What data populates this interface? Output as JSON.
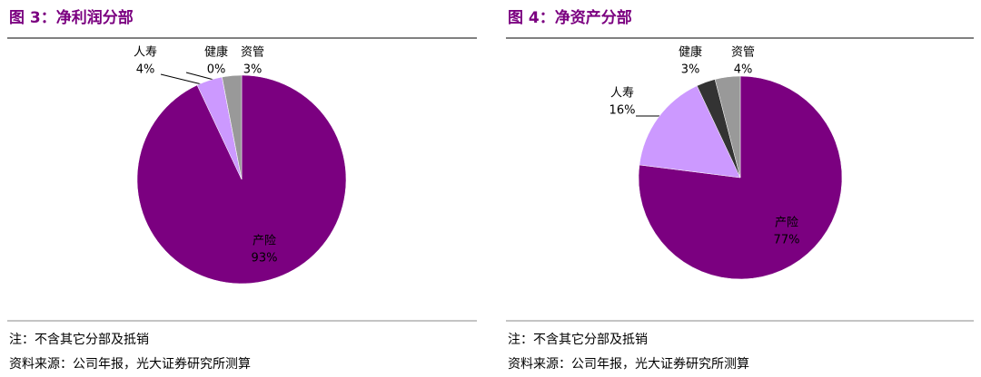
{
  "chart_data": [
    {
      "type": "pie",
      "title": "图 3：净利润分部",
      "categories": [
        "产险",
        "人寿",
        "健康",
        "资管"
      ],
      "values": [
        93,
        4,
        0,
        3
      ],
      "value_labels": [
        "93%",
        "4%",
        "0%",
        "3%"
      ],
      "colors": [
        "#7b0080",
        "#cc99ff",
        "#333333",
        "#999999"
      ],
      "note": "注：不含其它分部及抵销",
      "source": "资料来源：公司年报，光大证券研究所测算"
    },
    {
      "type": "pie",
      "title": "图 4：净资产分部",
      "categories": [
        "产险",
        "人寿",
        "健康",
        "资管"
      ],
      "values": [
        77,
        16,
        3,
        4
      ],
      "value_labels": [
        "77%",
        "16%",
        "3%",
        "4%"
      ],
      "colors": [
        "#7b0080",
        "#cc99ff",
        "#333333",
        "#999999"
      ],
      "note": "注：不含其它分部及抵销",
      "source": "资料来源：公司年报，光大证券研究所测算"
    }
  ]
}
